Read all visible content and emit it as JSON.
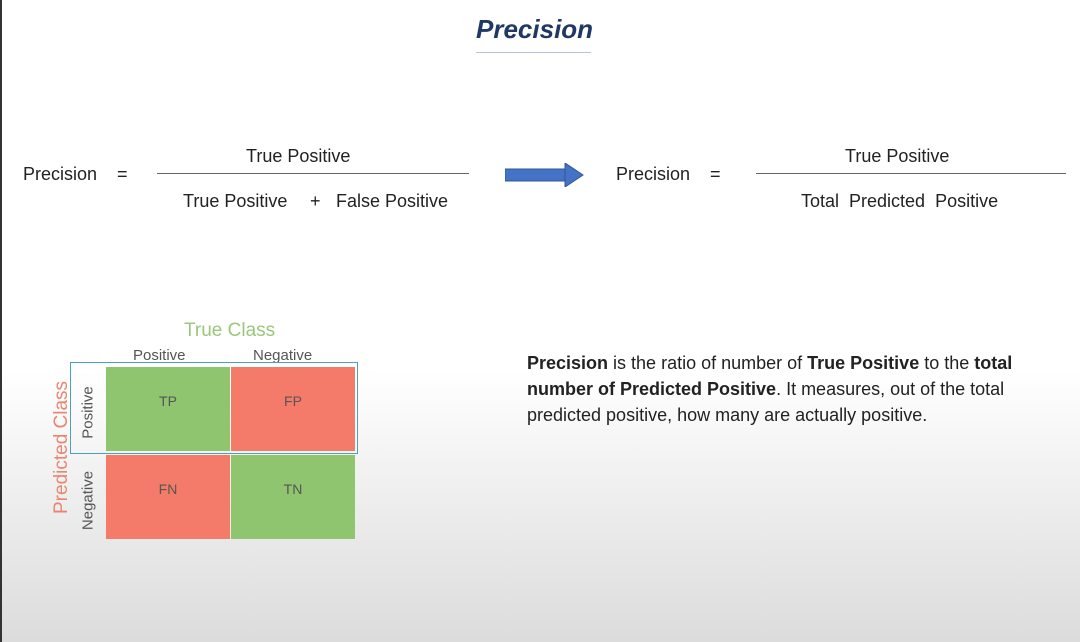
{
  "title": "Precision",
  "formula_left": {
    "lhs": "Precision",
    "equals": "=",
    "numerator": "True Positive",
    "denominator_a": "True Positive",
    "plus": "+",
    "denominator_b": "False Positive"
  },
  "formula_right": {
    "lhs": "Precision",
    "equals": "=",
    "numerator": "True Positive",
    "denominator": "Total  Predicted  Positive"
  },
  "matrix": {
    "true_class_label": "True Class",
    "predicted_class_label": "Predicted Class",
    "col_positive": "Positive",
    "col_negative": "Negative",
    "row_positive": "Positive",
    "row_negative": "Negative",
    "cells": {
      "tp": "TP",
      "fp": "FP",
      "fn": "FN",
      "tn": "TN"
    }
  },
  "description": {
    "t1": "Precision",
    "t2": " is the ratio of number of ",
    "t3": "True Positive",
    "t4": " to the ",
    "t5": "total number of Predicted Positive",
    "t6": ". It measures, out of the total predicted positive, how many are actually positive."
  },
  "colors": {
    "title": "#1f3864",
    "arrow": "#4472c4",
    "positive_cell": "#8fc56e",
    "negative_cell": "#f47b69",
    "true_class_label": "#9cc67d",
    "predicted_class_label": "#e8866f",
    "highlight_border": "#4aa4b8"
  }
}
